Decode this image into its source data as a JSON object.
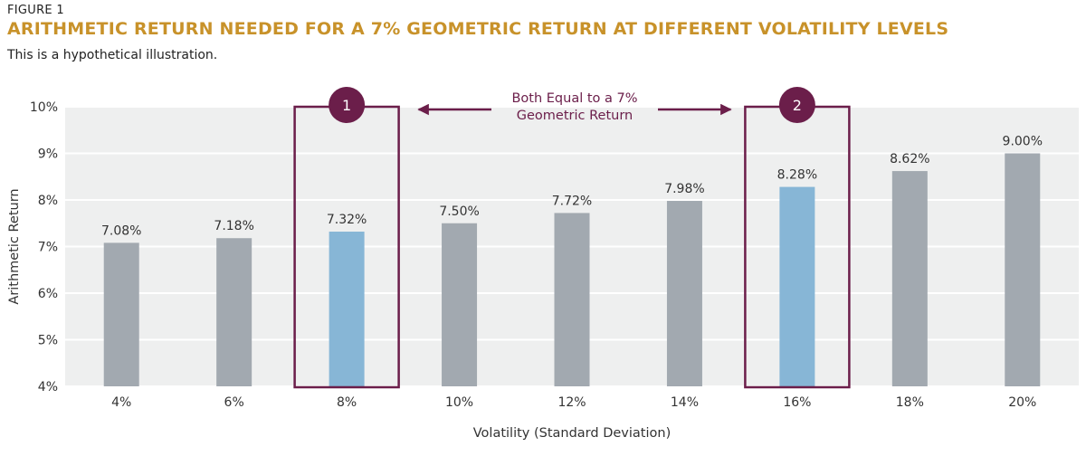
{
  "figure_label": "FIGURE 1",
  "title": "ARITHMETIC RETURN NEEDED FOR A 7% GEOMETRIC RETURN AT DIFFERENT VOLATILITY LEVELS",
  "subtitle": "This is a hypothetical illustration.",
  "colors": {
    "title": "#c8922a",
    "bar_default": "#a2a9b0",
    "bar_highlight": "#87b6d6",
    "accent": "#6b1e4a",
    "plot_background": "#eeefef",
    "gridline": "#ffffff"
  },
  "chart_data": {
    "type": "bar",
    "categories": [
      "4%",
      "6%",
      "8%",
      "10%",
      "12%",
      "14%",
      "16%",
      "18%",
      "20%"
    ],
    "values": [
      7.08,
      7.18,
      7.32,
      7.5,
      7.72,
      7.98,
      8.28,
      8.62,
      9.0
    ],
    "data_labels": [
      "7.08%",
      "7.18%",
      "7.32%",
      "7.50%",
      "7.72%",
      "7.98%",
      "8.28%",
      "8.62%",
      "9.00%"
    ],
    "highlighted": [
      false,
      false,
      true,
      false,
      false,
      false,
      true,
      false,
      false
    ],
    "xlabel": "Volatility (Standard Deviation)",
    "ylabel": "Arithmetic Return",
    "ylim": [
      4,
      10
    ],
    "y_ticks": [
      4,
      5,
      6,
      7,
      8,
      9,
      10
    ],
    "y_tick_labels": [
      "4%",
      "5%",
      "6%",
      "7%",
      "8%",
      "9%",
      "10%"
    ],
    "grid": true,
    "annotations": {
      "badges": [
        {
          "label": "1",
          "category_index": 2
        },
        {
          "label": "2",
          "category_index": 6
        }
      ],
      "arrow_text_line1": "Both Equal to a 7%",
      "arrow_text_line2": "Geometric Return"
    }
  }
}
